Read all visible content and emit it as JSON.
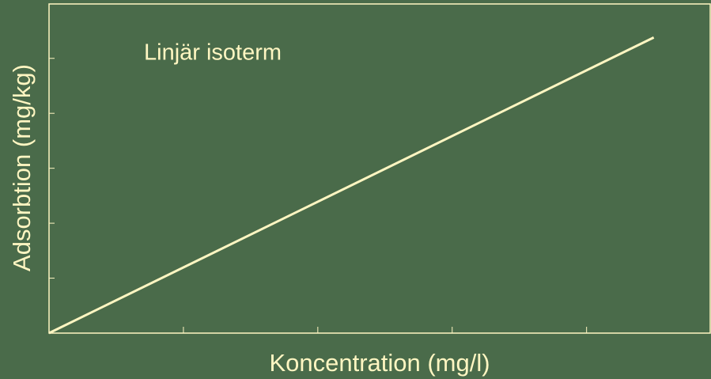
{
  "chart_data": {
    "type": "line",
    "annotation": "Linjär isoterm",
    "x_label": "Koncentration (mg/l)",
    "y_label": "Adsorbtion (mg/kg)",
    "x": [
      0,
      4.5
    ],
    "series": [
      {
        "name": "Linjär isoterm",
        "color": "#fff6c2",
        "values": [
          0,
          5.38
        ]
      }
    ],
    "xlim": [
      0,
      4.92
    ],
    "ylim": [
      0,
      5.99
    ],
    "xticks": [
      0,
      1,
      2,
      3,
      4
    ],
    "yticks": [
      0,
      1,
      2,
      3,
      4,
      5
    ],
    "grid": false,
    "background": "#4a6b4a"
  }
}
